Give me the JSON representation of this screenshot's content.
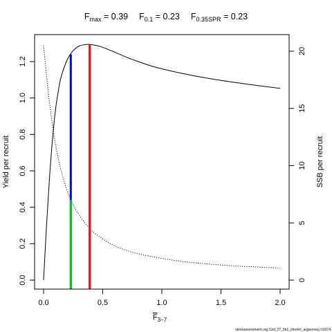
{
  "chart_data": {
    "type": "line",
    "title": {
      "fmax_label": "F",
      "fmax_sub": "max",
      "fmax_value": " = 0.39",
      "f01_label": "F",
      "f01_sub": "0.1",
      "f01_value": " = 0.23",
      "fspr_label": "F",
      "fspr_sub": "0.35SPR",
      "fspr_value": " = 0.23"
    },
    "xlabel": "F",
    "xlabel_sub": "3−7",
    "ylabel_left": "Yield per recruit",
    "ylabel_right": "SSB per recruit",
    "footnote": "stockassessment.org,Cod_27_5b1_shorter_augsurvey,r19374",
    "xlim": [
      0,
      2
    ],
    "ylim_left": [
      0,
      1.3
    ],
    "ylim_right": [
      0,
      21
    ],
    "x_ticks": [
      0,
      0.5,
      1,
      1.5,
      2
    ],
    "x_tick_labels": [
      "0.0",
      "0.5",
      "1.0",
      "1.5",
      "2.0"
    ],
    "left_ticks": [
      0,
      0.2,
      0.4,
      0.6,
      0.8,
      1,
      1.2
    ],
    "left_tick_labels": [
      "0.0",
      "0.2",
      "0.4",
      "0.6",
      "0.8",
      "1.0",
      "1.2"
    ],
    "right_ticks": [
      0,
      5,
      10,
      15,
      20
    ],
    "right_tick_labels": [
      "0",
      "5",
      "10",
      "15",
      "20"
    ],
    "series": [
      {
        "name": "Yield per recruit",
        "axis": "left",
        "style": "solid",
        "color": "#000000",
        "x": [
          0,
          0.025,
          0.05,
          0.075,
          0.1,
          0.125,
          0.15,
          0.2,
          0.25,
          0.3,
          0.35,
          0.39,
          0.45,
          0.5,
          0.6,
          0.7,
          0.8,
          0.9,
          1.0,
          1.2,
          1.4,
          1.6,
          1.8,
          2.0
        ],
        "y": [
          0,
          0.3,
          0.56,
          0.77,
          0.93,
          1.04,
          1.12,
          1.21,
          1.26,
          1.285,
          1.293,
          1.294,
          1.288,
          1.278,
          1.252,
          1.224,
          1.2,
          1.178,
          1.16,
          1.131,
          1.107,
          1.087,
          1.069,
          1.053
        ]
      },
      {
        "name": "SSB per recruit",
        "axis": "right",
        "style": "dotted",
        "color": "#000000",
        "x": [
          0,
          0.025,
          0.05,
          0.1,
          0.15,
          0.2,
          0.25,
          0.3,
          0.4,
          0.5,
          0.6,
          0.7,
          0.8,
          1.0,
          1.2,
          1.4,
          1.6,
          1.8,
          2.0
        ],
        "y": [
          20.5,
          17.9,
          15.5,
          11.9,
          9.5,
          7.8,
          6.6,
          5.7,
          4.4,
          3.6,
          3.0,
          2.6,
          2.3,
          1.9,
          1.6,
          1.4,
          1.25,
          1.15,
          1.05
        ]
      }
    ],
    "reference_lines": [
      {
        "name": "Fmax",
        "x": 0.39,
        "y_from": 0,
        "y_to": 1.294,
        "color": "#ff0000"
      },
      {
        "name": "F0.1",
        "x": 0.23,
        "y_from": 0,
        "y_to": 1.24,
        "color": "#0000ff"
      },
      {
        "name": "F0.35SPR",
        "x": 0.23,
        "y_from": 0,
        "y_to": 0.44,
        "color": "#00cc00"
      }
    ]
  }
}
